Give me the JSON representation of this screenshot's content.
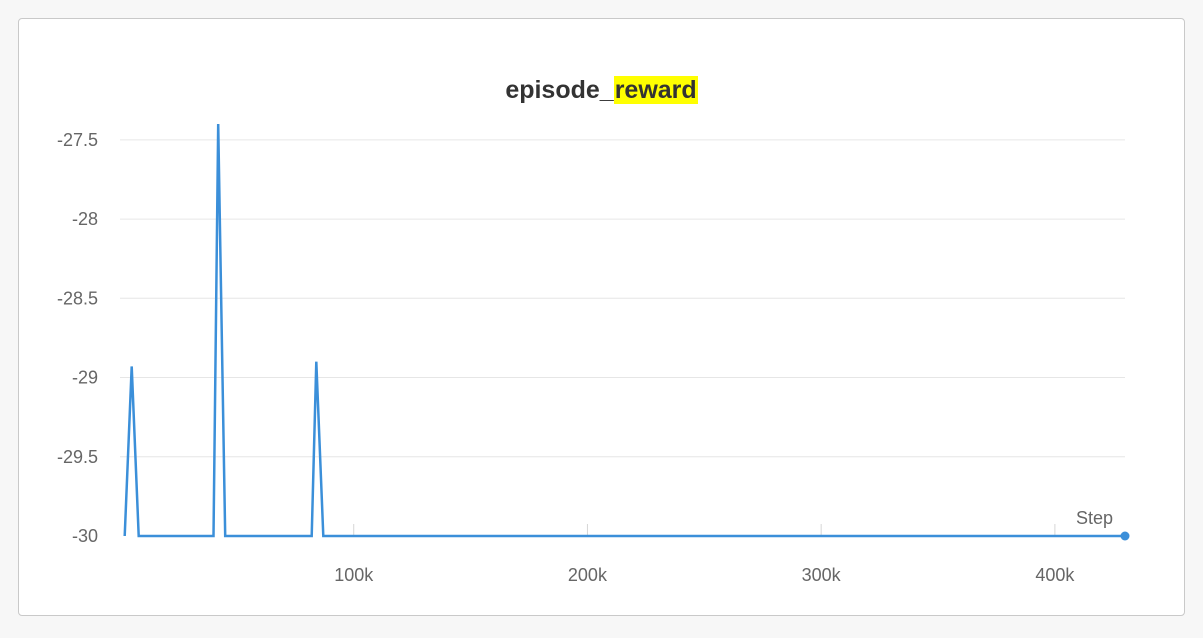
{
  "chart_data": {
    "type": "line",
    "title_prefix": "episode_",
    "title_highlight": "reward",
    "xlabel": "Step",
    "ylabel": "",
    "xlim": [
      0,
      430000
    ],
    "ylim": [
      -30,
      -27.4
    ],
    "x_ticks": [
      {
        "value": 100000,
        "label": "100k"
      },
      {
        "value": 200000,
        "label": "200k"
      },
      {
        "value": 300000,
        "label": "300k"
      },
      {
        "value": 400000,
        "label": "400k"
      }
    ],
    "y_ticks": [
      {
        "value": -27.5,
        "label": "-27.5"
      },
      {
        "value": -28,
        "label": "-28"
      },
      {
        "value": -28.5,
        "label": "-28.5"
      },
      {
        "value": -29,
        "label": "-29"
      },
      {
        "value": -29.5,
        "label": "-29.5"
      },
      {
        "value": -30,
        "label": "-30"
      }
    ],
    "grid": true,
    "series": [
      {
        "color": "#3b8fd9",
        "x": [
          2000,
          5000,
          8000,
          40000,
          42000,
          45000,
          82000,
          84000,
          87000,
          430000
        ],
        "y": [
          -30,
          -28.93,
          -30,
          -30,
          -27.4,
          -30,
          -30,
          -28.9,
          -30,
          -30
        ]
      }
    ]
  }
}
